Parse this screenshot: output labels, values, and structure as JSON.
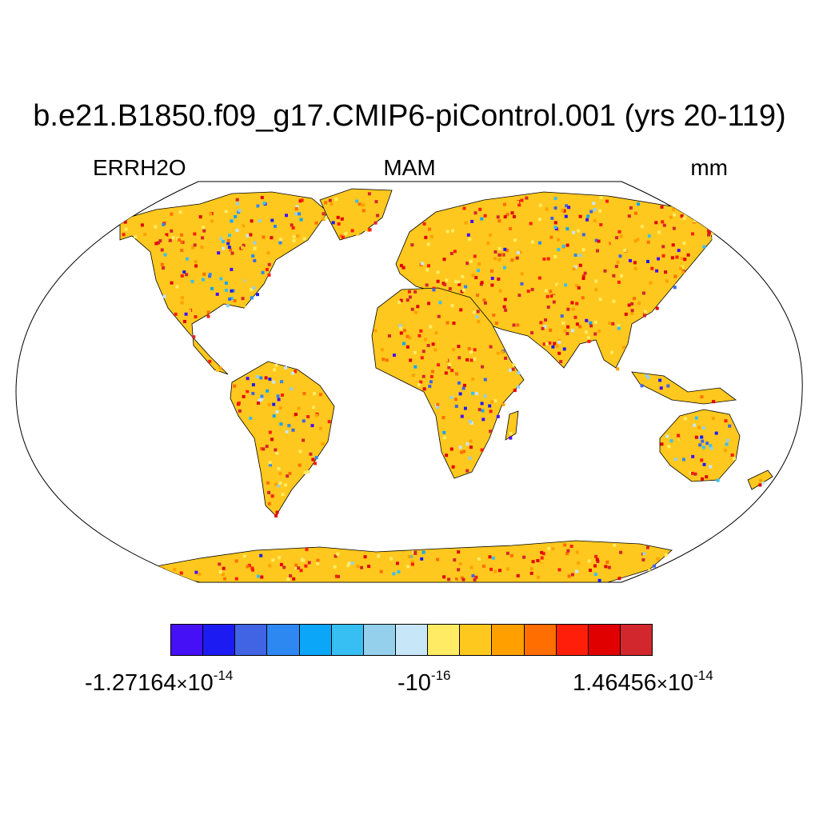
{
  "title": "b.e21.B1850.f09_g17.CMIP6-piControl.001 (yrs 20-119)",
  "labels": {
    "variable": "ERRH2O",
    "season": "MAM",
    "units": "mm"
  },
  "map": {
    "projection": "Robinson",
    "land_base_color": "#FFC81E",
    "ocean_color": "#FFFFFF",
    "coastline_color": "#000000"
  },
  "colorbar": {
    "colors": [
      "#4510F5",
      "#1C1CF2",
      "#4064E3",
      "#2D88F2",
      "#0BA6F7",
      "#37BEF2",
      "#94CFEB",
      "#C7E6F8",
      "#FFEB64",
      "#FFC81E",
      "#FFA000",
      "#FF6E00",
      "#FF1E0A",
      "#E10000",
      "#D2282D"
    ],
    "min_mantissa": "-1.27164",
    "min_exponent": "-14",
    "mid_base": "-10",
    "mid_exponent": "-16",
    "max_mantissa": "1.46456",
    "max_exponent": "-14",
    "times_symbol": "×",
    "base": "10"
  }
}
